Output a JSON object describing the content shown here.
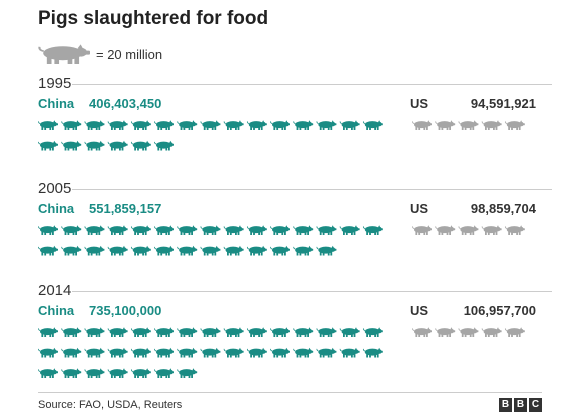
{
  "title": "Pigs slaughtered for food",
  "legend": {
    "unit_label": "= 20 million",
    "units_per_icon": 20000000,
    "icon": "pig-icon"
  },
  "colors": {
    "china": "#1a8c84",
    "us": "#a6a6a6",
    "legend_icon": "#a6a6a6"
  },
  "chart_data": {
    "type": "pictogram",
    "title": "Pigs slaughtered for food",
    "unit": "= 20 million",
    "categories": [
      "1995",
      "2005",
      "2014"
    ],
    "series": [
      {
        "name": "China",
        "values": [
          406403450,
          551859157,
          735100000
        ],
        "labels": [
          "406,403,450",
          "551,859,157",
          "735,100,000"
        ],
        "icons": [
          21,
          28,
          37
        ]
      },
      {
        "name": "US",
        "values": [
          94591921,
          98859704,
          106957700
        ],
        "labels": [
          "94,591,921",
          "98,859,704",
          "106,957,700"
        ],
        "icons": [
          5,
          5,
          5
        ]
      }
    ]
  },
  "years": [
    {
      "year": "1995",
      "china_label": "China",
      "china_value": "406,403,450",
      "us_label": "US",
      "us_value": "94,591,921"
    },
    {
      "year": "2005",
      "china_label": "China",
      "china_value": "551,859,157",
      "us_label": "US",
      "us_value": "98,859,704"
    },
    {
      "year": "2014",
      "china_label": "China",
      "china_value": "735,100,000",
      "us_label": "US",
      "us_value": "106,957,700"
    }
  ],
  "footer": {
    "source": "Source: FAO, USDA, Reuters",
    "logo_letters": [
      "B",
      "B",
      "C"
    ]
  }
}
